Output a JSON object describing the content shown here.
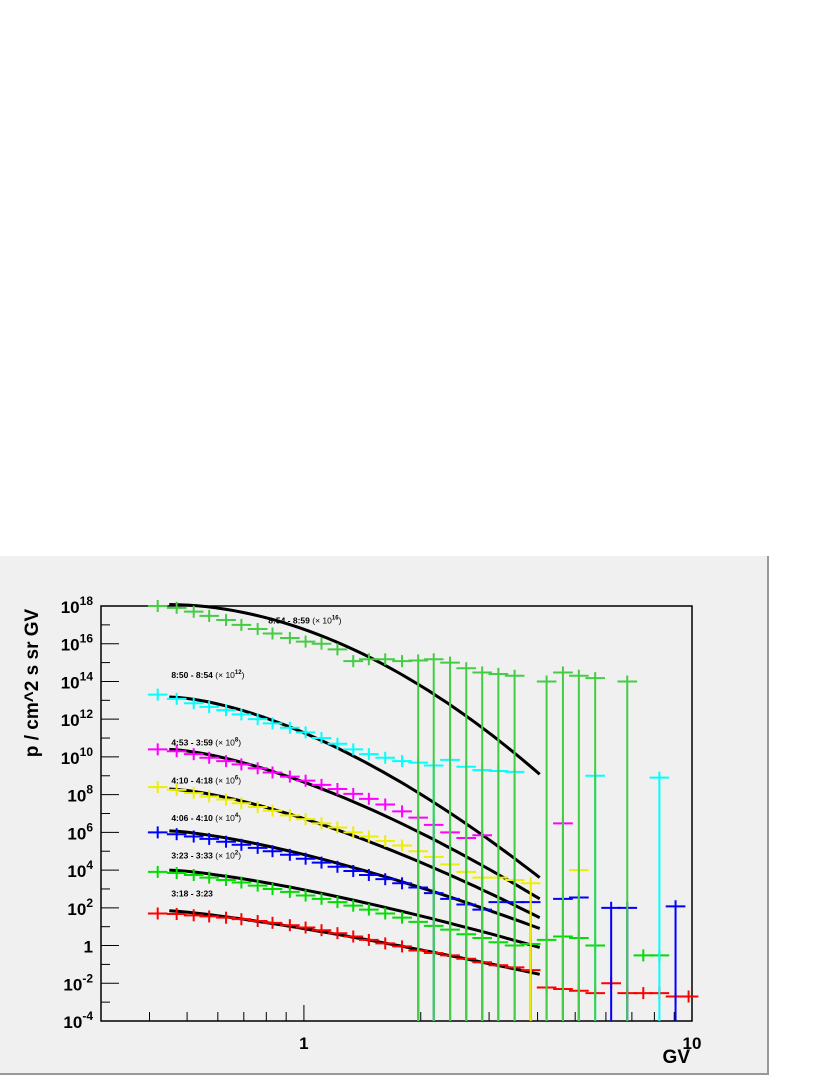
{
  "chart_data": {
    "type": "scatter",
    "xlabel": "GV",
    "ylabel": "p / cm^2 s sr GV",
    "xscale": "log",
    "yscale": "log",
    "xlim": [
      0.3,
      10
    ],
    "ylim": [
      0.0001,
      1e+18
    ],
    "grid": false,
    "x_ticks": [
      {
        "value": 1,
        "label": "1"
      },
      {
        "value": 10,
        "label": "10"
      }
    ],
    "y_ticks": [
      {
        "value": 0.0001,
        "base": "10",
        "exp": "-4"
      },
      {
        "value": 0.01,
        "base": "10",
        "exp": "-2"
      },
      {
        "value": 1,
        "base": "1",
        "exp": ""
      },
      {
        "value": 100,
        "base": "10",
        "exp": "2"
      },
      {
        "value": 10000,
        "base": "10",
        "exp": "4"
      },
      {
        "value": 1000000,
        "base": "10",
        "exp": "6"
      },
      {
        "value": 100000000,
        "base": "10",
        "exp": "8"
      },
      {
        "value": 10000000000,
        "base": "10",
        "exp": "10"
      },
      {
        "value": 1000000000000,
        "base": "10",
        "exp": "12"
      },
      {
        "value": 100000000000000,
        "base": "10",
        "exp": "14"
      },
      {
        "value": 10000000000000000,
        "base": "10",
        "exp": "16"
      },
      {
        "value": 1000000000000000000,
        "base": "10",
        "exp": "18"
      }
    ],
    "series": [
      {
        "name": "3:18 - 3:23",
        "scale_base": "",
        "scale_exp": "",
        "color": "#ff0000",
        "label_x": 0.45,
        "label_y": 400,
        "fit": {
          "x": [
            0.45,
            4.05
          ],
          "y": [
            70,
            0.03
          ],
          "curv": 0.25
        },
        "points": [
          {
            "x": 0.42,
            "y": 50
          },
          {
            "x": 0.47,
            "y": 47
          },
          {
            "x": 0.52,
            "y": 40
          },
          {
            "x": 0.57,
            "y": 35
          },
          {
            "x": 0.63,
            "y": 30
          },
          {
            "x": 0.69,
            "y": 25
          },
          {
            "x": 0.76,
            "y": 20
          },
          {
            "x": 0.83,
            "y": 16
          },
          {
            "x": 0.92,
            "y": 12
          },
          {
            "x": 1.01,
            "y": 9
          },
          {
            "x": 1.11,
            "y": 6.5
          },
          {
            "x": 1.22,
            "y": 4.5
          },
          {
            "x": 1.34,
            "y": 3
          },
          {
            "x": 1.47,
            "y": 2
          },
          {
            "x": 1.62,
            "y": 1.3
          },
          {
            "x": 1.79,
            "y": 0.9
          },
          {
            "x": 1.97,
            "y": 0.55
          },
          {
            "x": 2.16,
            "y": 0.4
          },
          {
            "x": 2.38,
            "y": 0.3
          },
          {
            "x": 2.62,
            "y": 0.2
          },
          {
            "x": 2.88,
            "y": 0.13
          },
          {
            "x": 3.17,
            "y": 0.09
          },
          {
            "x": 3.49,
            "y": 0.07
          },
          {
            "x": 3.84,
            "y": 0.05
          },
          {
            "x": 4.22,
            "y": 0.006
          },
          {
            "x": 4.65,
            "y": 0.005
          },
          {
            "x": 5.11,
            "y": 0.004
          },
          {
            "x": 5.63,
            "y": 0.003
          },
          {
            "x": 6.19,
            "y": 0.01
          },
          {
            "x": 6.81,
            "y": 0.003
          },
          {
            "x": 7.49,
            "y": 0.003
          },
          {
            "x": 8.24,
            "y": 0.003
          },
          {
            "x": 9.07,
            "y": 0.002
          },
          {
            "x": 9.8,
            "y": 0.002
          }
        ]
      },
      {
        "name": "3:23 - 3:33",
        "scale_base": "10",
        "scale_exp": "2",
        "color": "#00dd00",
        "label_x": 0.45,
        "label_y": 40000,
        "fit": {
          "x": [
            0.45,
            4.05
          ],
          "y": [
            10000,
            0.8
          ],
          "curv": 0.35
        },
        "points": [
          {
            "x": 0.42,
            "y": 8000
          },
          {
            "x": 0.47,
            "y": 7000
          },
          {
            "x": 0.52,
            "y": 5500
          },
          {
            "x": 0.57,
            "y": 4000
          },
          {
            "x": 0.63,
            "y": 3000
          },
          {
            "x": 0.69,
            "y": 2200
          },
          {
            "x": 0.76,
            "y": 1500
          },
          {
            "x": 0.83,
            "y": 1000
          },
          {
            "x": 0.92,
            "y": 700
          },
          {
            "x": 1.01,
            "y": 450
          },
          {
            "x": 1.11,
            "y": 300
          },
          {
            "x": 1.22,
            "y": 200
          },
          {
            "x": 1.34,
            "y": 130
          },
          {
            "x": 1.47,
            "y": 80
          },
          {
            "x": 1.62,
            "y": 50
          },
          {
            "x": 1.79,
            "y": 30
          },
          {
            "x": 1.97,
            "y": 18
          },
          {
            "x": 2.16,
            "y": 11
          },
          {
            "x": 2.38,
            "y": 7
          },
          {
            "x": 2.62,
            "y": 4
          },
          {
            "x": 2.88,
            "y": 2.5
          },
          {
            "x": 3.17,
            "y": 1.5
          },
          {
            "x": 3.49,
            "y": 1
          },
          {
            "x": 3.84,
            "y": 1.2
          },
          {
            "x": 4.22,
            "y": 2
          },
          {
            "x": 4.65,
            "y": 3
          },
          {
            "x": 5.11,
            "y": 2.5
          },
          {
            "x": 5.63,
            "y": 1
          },
          {
            "x": 7.49,
            "y": 0.3
          },
          {
            "x": 8.24,
            "y": 0.3
          }
        ]
      },
      {
        "name": "4:06 - 4:10",
        "scale_base": "10",
        "scale_exp": "4",
        "color": "#0000ff",
        "label_x": 0.45,
        "label_y": 4000000,
        "fit": {
          "x": [
            0.45,
            4.05
          ],
          "y": [
            1200000,
            8
          ],
          "curv": 0.4
        },
        "points": [
          {
            "x": 0.42,
            "y": 1000000
          },
          {
            "x": 0.47,
            "y": 800000
          },
          {
            "x": 0.52,
            "y": 600000
          },
          {
            "x": 0.57,
            "y": 450000
          },
          {
            "x": 0.63,
            "y": 320000
          },
          {
            "x": 0.69,
            "y": 220000
          },
          {
            "x": 0.76,
            "y": 150000
          },
          {
            "x": 0.83,
            "y": 100000
          },
          {
            "x": 0.92,
            "y": 65000
          },
          {
            "x": 1.01,
            "y": 40000
          },
          {
            "x": 1.11,
            "y": 25000
          },
          {
            "x": 1.22,
            "y": 15000
          },
          {
            "x": 1.34,
            "y": 9000
          },
          {
            "x": 1.47,
            "y": 5500
          },
          {
            "x": 1.62,
            "y": 3300
          },
          {
            "x": 1.79,
            "y": 2000
          },
          {
            "x": 1.97,
            "y": 1200
          },
          {
            "x": 2.16,
            "y": 600
          },
          {
            "x": 2.38,
            "y": 300
          },
          {
            "x": 2.62,
            "y": 150
          },
          {
            "x": 2.88,
            "y": 80
          },
          {
            "x": 3.17,
            "y": 200
          },
          {
            "x": 3.49,
            "y": 200
          },
          {
            "x": 3.84,
            "y": 200
          },
          {
            "x": 4.65,
            "y": 300
          },
          {
            "x": 5.11,
            "y": 350
          },
          {
            "x": 6.19,
            "y": 100
          },
          {
            "x": 6.81,
            "y": 100
          },
          {
            "x": 9.07,
            "y": 120
          }
        ]
      },
      {
        "name": "4:10 - 4:18",
        "scale_base": "10",
        "scale_exp": "6",
        "color": "#eeee00",
        "label_x": 0.45,
        "label_y": 400000000,
        "fit": {
          "x": [
            0.45,
            4.05
          ],
          "y": [
            200000000,
            30
          ],
          "curv": 0.45
        },
        "points": [
          {
            "x": 0.42,
            "y": 250000000
          },
          {
            "x": 0.47,
            "y": 180000000
          },
          {
            "x": 0.52,
            "y": 120000000
          },
          {
            "x": 0.57,
            "y": 80000000
          },
          {
            "x": 0.63,
            "y": 55000000
          },
          {
            "x": 0.69,
            "y": 35000000
          },
          {
            "x": 0.76,
            "y": 22000000
          },
          {
            "x": 0.83,
            "y": 14000000
          },
          {
            "x": 0.92,
            "y": 8000000
          },
          {
            "x": 1.01,
            "y": 5000000
          },
          {
            "x": 1.11,
            "y": 3000000
          },
          {
            "x": 1.22,
            "y": 1800000
          },
          {
            "x": 1.34,
            "y": 1000000
          },
          {
            "x": 1.47,
            "y": 600000
          },
          {
            "x": 1.62,
            "y": 350000
          },
          {
            "x": 1.79,
            "y": 200000
          },
          {
            "x": 1.97,
            "y": 100000
          },
          {
            "x": 2.16,
            "y": 50000
          },
          {
            "x": 2.38,
            "y": 20000
          },
          {
            "x": 2.62,
            "y": 8000
          },
          {
            "x": 2.88,
            "y": 4000
          },
          {
            "x": 3.17,
            "y": 4000
          },
          {
            "x": 3.49,
            "y": 3000
          },
          {
            "x": 3.84,
            "y": 2000
          },
          {
            "x": 5.11,
            "y": 10000
          }
        ]
      },
      {
        "name": "4:53 - 3:59",
        "scale_base": "10",
        "scale_exp": "8",
        "color": "#ff00ff",
        "label_x": 0.45,
        "label_y": 40000000000,
        "fit": {
          "x": [
            0.45,
            4.05
          ],
          "y": [
            25000000000,
            300
          ],
          "curv": 0.5
        },
        "points": [
          {
            "x": 0.42,
            "y": 25000000000
          },
          {
            "x": 0.47,
            "y": 20000000000
          },
          {
            "x": 0.52,
            "y": 14000000000
          },
          {
            "x": 0.57,
            "y": 9000000000
          },
          {
            "x": 0.63,
            "y": 6000000000
          },
          {
            "x": 0.69,
            "y": 4000000000
          },
          {
            "x": 0.76,
            "y": 2500000000
          },
          {
            "x": 0.83,
            "y": 1500000000
          },
          {
            "x": 0.92,
            "y": 900000000
          },
          {
            "x": 1.01,
            "y": 550000000
          },
          {
            "x": 1.11,
            "y": 330000000
          },
          {
            "x": 1.22,
            "y": 200000000
          },
          {
            "x": 1.34,
            "y": 110000000
          },
          {
            "x": 1.47,
            "y": 60000000
          },
          {
            "x": 1.62,
            "y": 30000000
          },
          {
            "x": 1.79,
            "y": 13000000
          },
          {
            "x": 1.97,
            "y": 6000000
          },
          {
            "x": 2.16,
            "y": 2500000
          },
          {
            "x": 2.38,
            "y": 1000000
          },
          {
            "x": 2.62,
            "y": 500000
          },
          {
            "x": 2.88,
            "y": 700000
          },
          {
            "x": 4.65,
            "y": 3000000
          }
        ]
      },
      {
        "name": "8:50 - 8:54",
        "scale_base": "10",
        "scale_exp": "12",
        "color": "#00ffff",
        "label_x": 0.45,
        "label_y": 150000000000000,
        "fit": {
          "x": [
            0.45,
            4.05
          ],
          "y": [
            15000000000000,
            4000
          ],
          "curv": 0.6
        },
        "points": [
          {
            "x": 0.42,
            "y": 20000000000000
          },
          {
            "x": 0.47,
            "y": 12000000000000
          },
          {
            "x": 0.52,
            "y": 7000000000000
          },
          {
            "x": 0.57,
            "y": 4500000000000
          },
          {
            "x": 0.63,
            "y": 3000000000000
          },
          {
            "x": 0.69,
            "y": 1800000000000
          },
          {
            "x": 0.76,
            "y": 1000000000000
          },
          {
            "x": 0.83,
            "y": 600000000000
          },
          {
            "x": 0.92,
            "y": 350000000000
          },
          {
            "x": 1.01,
            "y": 200000000000
          },
          {
            "x": 1.11,
            "y": 100000000000
          },
          {
            "x": 1.22,
            "y": 50000000000
          },
          {
            "x": 1.34,
            "y": 25000000000
          },
          {
            "x": 1.47,
            "y": 14000000000
          },
          {
            "x": 1.62,
            "y": 9000000000
          },
          {
            "x": 1.79,
            "y": 6000000000
          },
          {
            "x": 1.97,
            "y": 5000000000
          },
          {
            "x": 2.16,
            "y": 3500000000
          },
          {
            "x": 2.38,
            "y": 7000000000
          },
          {
            "x": 2.62,
            "y": 3000000000
          },
          {
            "x": 2.88,
            "y": 2000000000
          },
          {
            "x": 3.17,
            "y": 1800000000
          },
          {
            "x": 3.49,
            "y": 1600000000
          },
          {
            "x": 5.63,
            "y": 1000000000
          },
          {
            "x": 8.24,
            "y": 800000000
          }
        ]
      },
      {
        "name": "8:54 - 8:59",
        "scale_base": "10",
        "scale_exp": "16",
        "color": "#44cc44",
        "label_x": 0.8,
        "label_y": 1.2e+17,
        "fit": {
          "x": [
            0.45,
            4.05
          ],
          "y": [
            1.2e+18,
            1200000000.0
          ],
          "curv": 0.9
        },
        "points": [
          {
            "x": 0.42,
            "y": 1.5e+18
          },
          {
            "x": 0.47,
            "y": 8e+17
          },
          {
            "x": 0.52,
            "y": 5e+17
          },
          {
            "x": 0.57,
            "y": 3e+17
          },
          {
            "x": 0.63,
            "y": 1.8e+17
          },
          {
            "x": 0.69,
            "y": 1e+17
          },
          {
            "x": 0.76,
            "y": 6e+16
          },
          {
            "x": 0.83,
            "y": 3.5e+16
          },
          {
            "x": 0.92,
            "y": 2e+16
          },
          {
            "x": 1.01,
            "y": 1.3e+16
          },
          {
            "x": 1.11,
            "y": 1e+16
          },
          {
            "x": 1.22,
            "y": 5000000000000000.0
          },
          {
            "x": 1.34,
            "y": 1200000000000000.0
          },
          {
            "x": 1.47,
            "y": 1500000000000000.0
          },
          {
            "x": 1.62,
            "y": 1500000000000000.0
          },
          {
            "x": 1.79,
            "y": 1200000000000000.0
          },
          {
            "x": 1.97,
            "y": 1300000000000000.0
          },
          {
            "x": 2.16,
            "y": 1500000000000000.0
          },
          {
            "x": 2.38,
            "y": 1000000000000000.0
          },
          {
            "x": 2.62,
            "y": 500000000000000.0
          },
          {
            "x": 2.88,
            "y": 300000000000000.0
          },
          {
            "x": 3.17,
            "y": 250000000000000.0
          },
          {
            "x": 3.49,
            "y": 200000000000000.0
          },
          {
            "x": 4.22,
            "y": 100000000000000.0
          },
          {
            "x": 4.65,
            "y": 300000000000000.0
          },
          {
            "x": 5.11,
            "y": 200000000000000.0
          },
          {
            "x": 5.63,
            "y": 150000000000000.0
          },
          {
            "x": 6.81,
            "y": 100000000000000.0
          }
        ]
      }
    ]
  }
}
